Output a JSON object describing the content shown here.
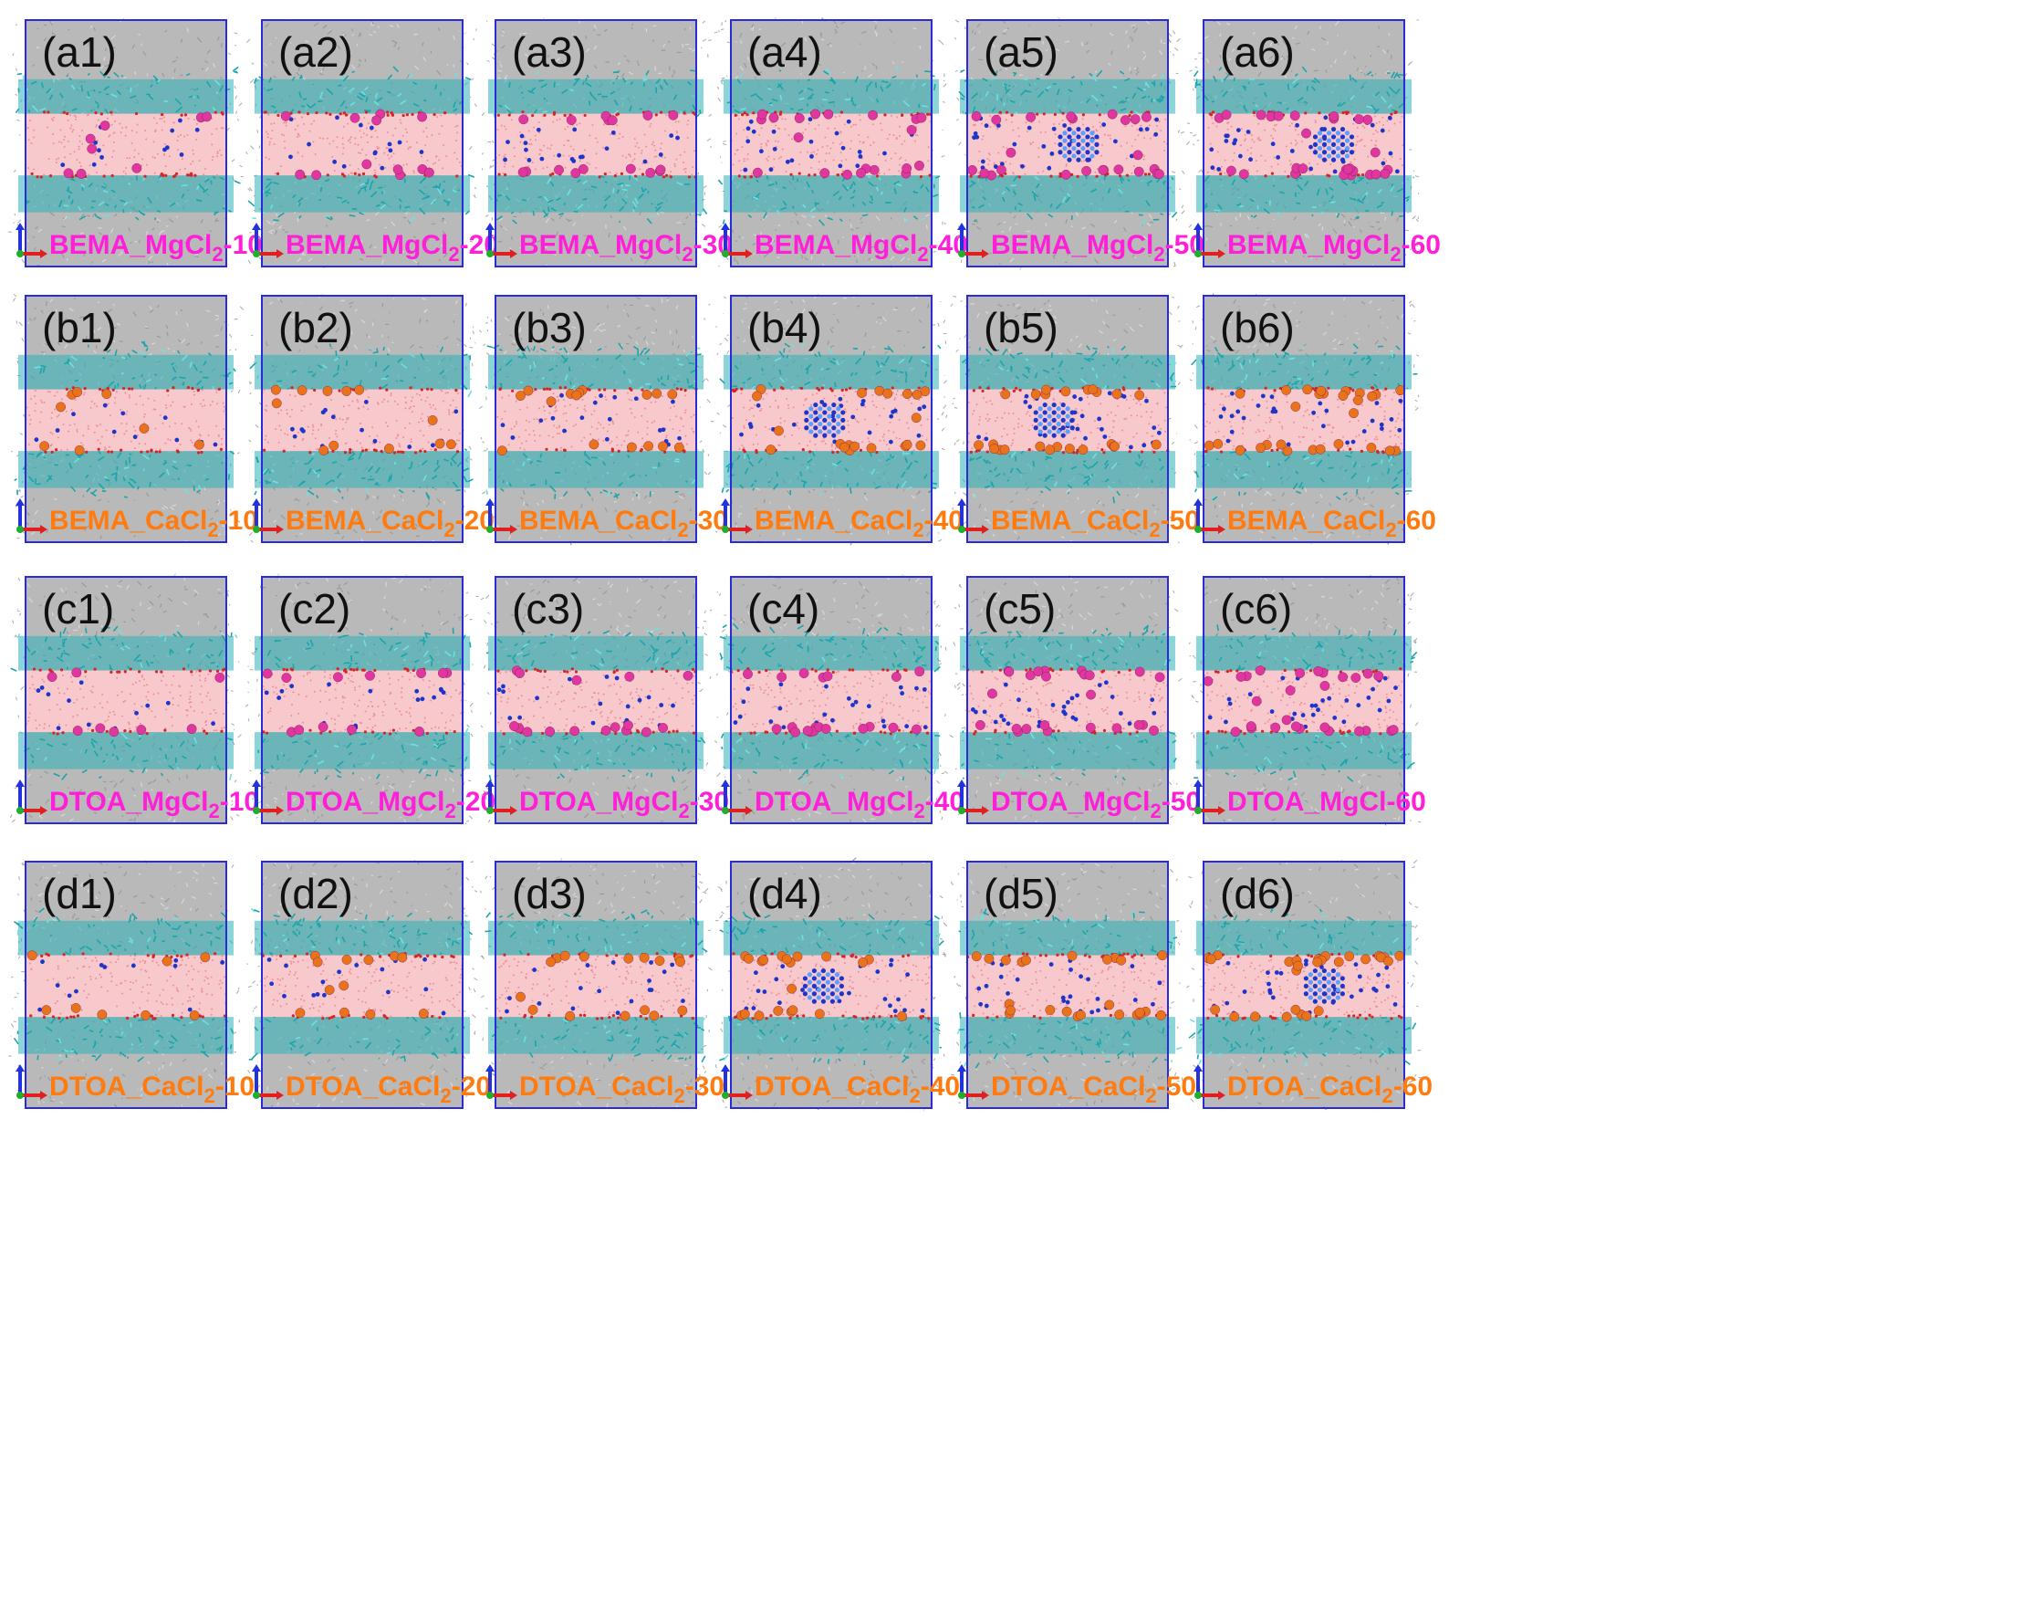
{
  "colors": {
    "frame": "#2a2ad6",
    "solvent": "#b9b9b9",
    "water": "#f7c9cc",
    "surfactant": "#2bb3b8",
    "mg_label": "#ff1fd9",
    "ca_label": "#ff7b0f",
    "mg_ion": "#e0369f",
    "ca_ion": "#e8731a",
    "chloride": "#1f35c9",
    "axis_z": "#2233dd",
    "axis_x": "#e02020",
    "axis_y": "#1fae2e"
  },
  "icons": {
    "axes": "xyz-orientation-axes-icon"
  },
  "rows": [
    {
      "row_id": "a",
      "ion_type": "mg",
      "panels": [
        {
          "letter": "(a1)",
          "prefix": "BEMA_MgCl",
          "sub": "2",
          "suffix": "-10",
          "crystal": false
        },
        {
          "letter": "(a2)",
          "prefix": "BEMA_MgCl",
          "sub": "2",
          "suffix": "-20",
          "crystal": false
        },
        {
          "letter": "(a3)",
          "prefix": "BEMA_MgCl",
          "sub": "2",
          "suffix": "-30",
          "crystal": false
        },
        {
          "letter": "(a4)",
          "prefix": "BEMA_MgCl",
          "sub": "2",
          "suffix": "-40",
          "crystal": false
        },
        {
          "letter": "(a5)",
          "prefix": "BEMA_MgCl",
          "sub": "2",
          "suffix": "-50",
          "crystal": true
        },
        {
          "letter": "(a6)",
          "prefix": "BEMA_MgCl",
          "sub": "2",
          "suffix": "-60",
          "crystal": true
        }
      ]
    },
    {
      "row_id": "b",
      "ion_type": "ca",
      "panels": [
        {
          "letter": "(b1)",
          "prefix": "BEMA_CaCl",
          "sub": "2",
          "suffix": "-10",
          "crystal": false
        },
        {
          "letter": "(b2)",
          "prefix": "BEMA_CaCl",
          "sub": "2",
          "suffix": "-20",
          "crystal": false
        },
        {
          "letter": "(b3)",
          "prefix": "BEMA_CaCl",
          "sub": "2",
          "suffix": "-30",
          "crystal": false
        },
        {
          "letter": "(b4)",
          "prefix": "BEMA_CaCl",
          "sub": "2",
          "suffix": "-40",
          "crystal": true
        },
        {
          "letter": "(b5)",
          "prefix": "BEMA_CaCl",
          "sub": "2",
          "suffix": "-50",
          "crystal": true
        },
        {
          "letter": "(b6)",
          "prefix": "BEMA_CaCl",
          "sub": "2",
          "suffix": "-60",
          "crystal": false
        }
      ]
    },
    {
      "row_id": "c",
      "ion_type": "mg",
      "panels": [
        {
          "letter": "(c1)",
          "prefix": "DTOA_MgCl",
          "sub": "2",
          "suffix": "-10",
          "crystal": false
        },
        {
          "letter": "(c2)",
          "prefix": "DTOA_MgCl",
          "sub": "2",
          "suffix": "-20",
          "crystal": false
        },
        {
          "letter": "(c3)",
          "prefix": "DTOA_MgCl",
          "sub": "2",
          "suffix": "-30",
          "crystal": false
        },
        {
          "letter": "(c4)",
          "prefix": "DTOA_MgCl",
          "sub": "2",
          "suffix": "-40",
          "crystal": false
        },
        {
          "letter": "(c5)",
          "prefix": "DTOA_MgCl",
          "sub": "2",
          "suffix": "-50",
          "crystal": false
        },
        {
          "letter": "(c6)",
          "prefix": "DTOA_MgCl",
          "sub": "",
          "suffix": "-60",
          "crystal": false
        }
      ]
    },
    {
      "row_id": "d",
      "ion_type": "ca",
      "panels": [
        {
          "letter": "(d1)",
          "prefix": "DTOA_CaCl",
          "sub": "2",
          "suffix": "-10",
          "crystal": false
        },
        {
          "letter": "(d2)",
          "prefix": "DTOA_CaCl",
          "sub": "2",
          "suffix": "-20",
          "crystal": false
        },
        {
          "letter": "(d3)",
          "prefix": "DTOA_CaCl",
          "sub": "2",
          "suffix": "-30",
          "crystal": false
        },
        {
          "letter": "(d4)",
          "prefix": "DTOA_CaCl",
          "sub": "2",
          "suffix": "-40",
          "crystal": true
        },
        {
          "letter": "(d5)",
          "prefix": "DTOA_CaCl",
          "sub": "2",
          "suffix": "-50",
          "crystal": false
        },
        {
          "letter": "(d6)",
          "prefix": "DTOA_CaCl",
          "sub": "2",
          "suffix": "-60",
          "crystal": true
        }
      ]
    }
  ]
}
